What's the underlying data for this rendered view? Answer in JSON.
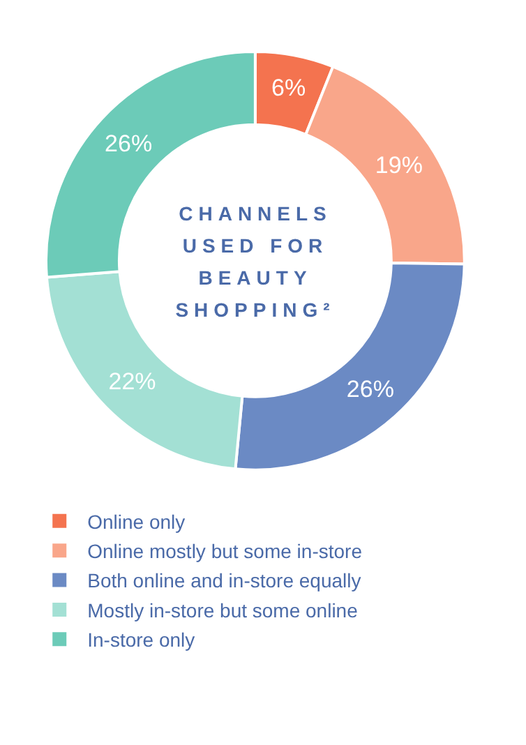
{
  "chart_data": {
    "type": "donut",
    "title": "CHANNELS USED FOR BEAUTY SHOPPING²",
    "categories": [
      "Online only",
      "Online mostly but some in-store",
      "Both online and in-store equally",
      "Mostly in-store but some online",
      "In-store only"
    ],
    "values": [
      6,
      19,
      26,
      22,
      26
    ],
    "colors": [
      "#f4734f",
      "#f9a68a",
      "#6b8ac4",
      "#a3e0d4",
      "#6ccbb8"
    ],
    "value_labels": [
      "6%",
      "19%",
      "26%",
      "22%",
      "26%"
    ],
    "legend": "bottom left"
  }
}
